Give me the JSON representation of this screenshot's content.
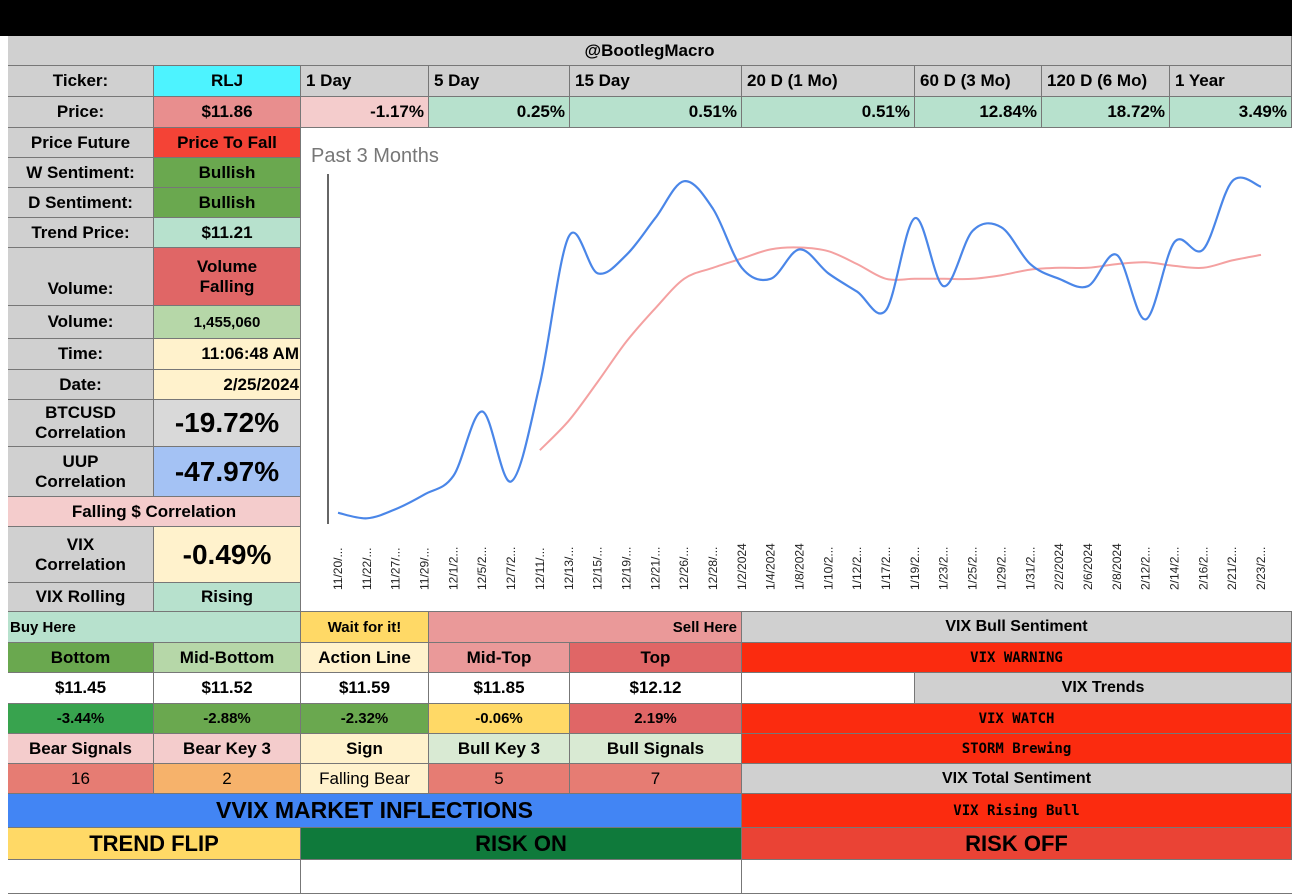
{
  "header": {
    "handle": "@BootlegMacro"
  },
  "ticker": {
    "label": "Ticker:",
    "value": "RLJ"
  },
  "price": {
    "label": "Price:",
    "value": "$11.86"
  },
  "periods": [
    {
      "label": "1 Day",
      "change": "-1.17%"
    },
    {
      "label": "5 Day",
      "change": "0.25%"
    },
    {
      "label": "15 Day",
      "change": "0.51%"
    },
    {
      "label": "20 D (1 Mo)",
      "change": "0.51%"
    },
    {
      "label": "60 D (3 Mo)",
      "change": "12.84%"
    },
    {
      "label": "120 D (6 Mo)",
      "change": "18.72%"
    },
    {
      "label": "1 Year",
      "change": "3.49%"
    }
  ],
  "left_panel": {
    "price_future": {
      "label": "Price Future",
      "value": "Price To Fall"
    },
    "w_sentiment": {
      "label": "W Sentiment:",
      "value": "Bullish"
    },
    "d_sentiment": {
      "label": "D Sentiment:",
      "value": "Bullish"
    },
    "trend_price": {
      "label": "Trend Price:",
      "value": "$11.21"
    },
    "volume_trend": {
      "label": "Volume:",
      "value_line1": "Volume",
      "value_line2": "Falling"
    },
    "volume": {
      "label": "Volume:",
      "value": "1,455,060"
    },
    "time": {
      "label": "Time:",
      "value": "11:06:48 AM"
    },
    "date": {
      "label": "Date:",
      "value": "2/25/2024"
    },
    "btc_corr": {
      "label_line1": "BTCUSD",
      "label_line2": "Correlation",
      "value": "-19.72%"
    },
    "uup_corr": {
      "label_line1": "UUP",
      "label_line2": "Correlation",
      "value": "-47.97%"
    },
    "falling_corr": "Falling $ Correlation",
    "vix_corr": {
      "label_line1": "VIX",
      "label_line2": "Correlation",
      "value": "-0.49%"
    },
    "vix_rolling": {
      "label": "VIX Rolling",
      "value": "Rising"
    }
  },
  "levels": {
    "buy_here": "Buy Here",
    "wait": "Wait for it!",
    "sell_here": "Sell Here",
    "headers": [
      "Bottom",
      "Mid-Bottom",
      "Action Line",
      "Mid-Top",
      "Top"
    ],
    "prices": [
      "$11.45",
      "$11.52",
      "$11.59",
      "$11.85",
      "$12.12"
    ],
    "percents": [
      "-3.44%",
      "-2.88%",
      "-2.32%",
      "-0.06%",
      "2.19%"
    ]
  },
  "signals": {
    "headers": [
      "Bear Signals",
      "Bear Key 3",
      "Sign",
      "Bull Key 3",
      "Bull Signals"
    ],
    "values": [
      "16",
      "2",
      "Falling Bear",
      "5",
      "7"
    ]
  },
  "vvix": {
    "title": "VVIX MARKET INFLECTIONS",
    "trend_flip": "TREND FLIP",
    "risk_on": "RISK ON",
    "risk_off": "RISK OFF"
  },
  "vix_panel": {
    "bull_sentiment_label": "VIX Bull Sentiment",
    "warning": "VIX WARNING",
    "trends_label": "VIX Trends",
    "watch": "VIX WATCH",
    "storm": "STORM Brewing",
    "total_label": "VIX Total Sentiment",
    "rising_bull": "VIX Rising Bull"
  },
  "colors": {
    "cyan": "#4df3ff",
    "price_red": "#e88e8e",
    "green_dark": "#6aa84f",
    "mint": "#b7e1cd",
    "red": "#e06666",
    "bright_red": "#fb2b0f",
    "yellow": "#fff2cc",
    "blue_vvix": "#4285f4",
    "gold": "#ffd966",
    "dark_green": "#0f7a3b",
    "risk_off_red": "#ea4335"
  },
  "chart_data": {
    "type": "line",
    "title": "Past 3 Months",
    "x": [
      "11/20/...",
      "11/22/...",
      "11/27/...",
      "11/29/...",
      "12/1/2...",
      "12/5/2...",
      "12/7/2...",
      "12/11/...",
      "12/13/...",
      "12/15/...",
      "12/19/...",
      "12/21/...",
      "12/26/...",
      "12/28/...",
      "1/2/2024",
      "1/4/2024",
      "1/8/2024",
      "1/10/2...",
      "1/12/2...",
      "1/17/2...",
      "1/19/2...",
      "1/23/2...",
      "1/25/2...",
      "1/29/2...",
      "1/31/2...",
      "2/2/2024",
      "2/6/2024",
      "2/8/2024",
      "2/12/2...",
      "2/14/2...",
      "2/16/2...",
      "2/21/2...",
      "2/23/2..."
    ],
    "series": [
      {
        "color": "#4a86e8",
        "values": [
          9.95,
          9.92,
          9.97,
          10.05,
          10.15,
          10.5,
          10.12,
          10.65,
          11.45,
          11.25,
          11.35,
          11.55,
          11.75,
          11.6,
          11.28,
          11.22,
          11.38,
          11.25,
          11.15,
          11.05,
          11.55,
          11.18,
          11.48,
          11.5,
          11.3,
          11.22,
          11.18,
          11.35,
          11.0,
          11.42,
          11.38,
          11.75,
          11.72
        ]
      },
      {
        "color": "#f4a1a1",
        "values": [
          null,
          null,
          null,
          null,
          null,
          null,
          null,
          10.29,
          10.45,
          10.66,
          10.88,
          11.06,
          11.22,
          11.28,
          11.33,
          11.38,
          11.39,
          11.37,
          11.3,
          11.22,
          11.22,
          11.22,
          11.22,
          11.24,
          11.27,
          11.28,
          11.28,
          11.3,
          11.31,
          11.29,
          11.28,
          11.32,
          11.35
        ]
      }
    ],
    "ylim": [
      9.9,
      11.8
    ]
  }
}
